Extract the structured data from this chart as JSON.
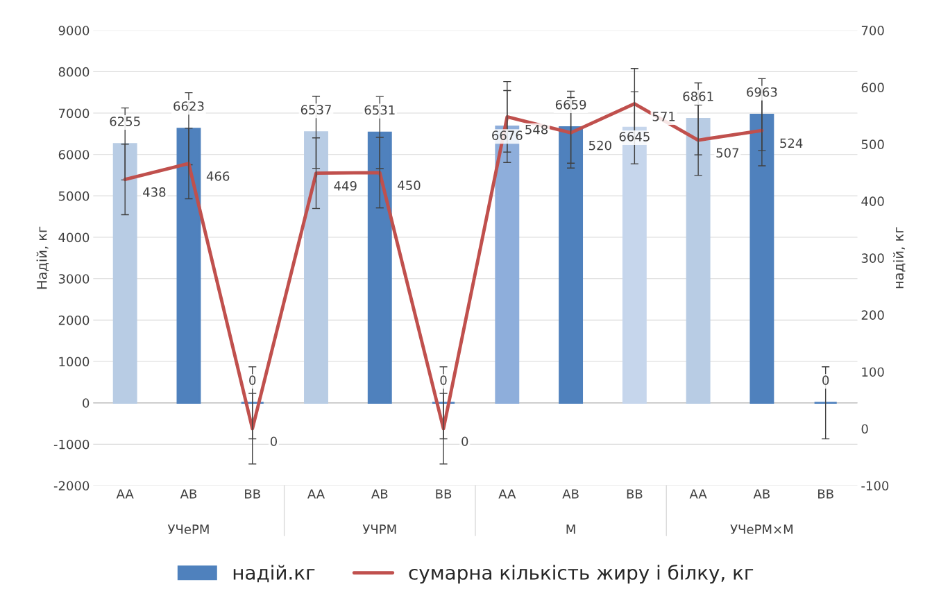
{
  "chart_data": {
    "type": "bar",
    "categories": [
      "AA",
      "AB",
      "BB",
      "AA",
      "AB",
      "BB",
      "AA",
      "AB",
      "BB",
      "AA",
      "AB",
      "BB"
    ],
    "annotations": [
      "УЧеРМ",
      "УЧРМ",
      "М",
      "УЧеРМ×М"
    ],
    "ylabel": "Надій, кг",
    "y2label": "надій, кг",
    "ylim": [
      -2000,
      9000
    ],
    "yticks": [
      -2000,
      -1000,
      0,
      1000,
      2000,
      3000,
      4000,
      5000,
      6000,
      7000,
      8000,
      9000
    ],
    "y2lim": [
      -100,
      700
    ],
    "y2ticks": [
      -100,
      0,
      100,
      200,
      300,
      400,
      500,
      600,
      700
    ],
    "grid": "y",
    "legend": "bottom",
    "data_labels": true,
    "series": [
      {
        "name": "надій.кг",
        "color": "#4f81bd",
        "colors": [
          "#b8cce4",
          "#4f81bd",
          "#4f81bd",
          "#b8cce4",
          "#4f81bd",
          "#4f81bd",
          "#8eaedb",
          "#4f81bd",
          "#c6d6ec",
          "#b8cce4",
          "#4f81bd",
          "#4f81bd"
        ],
        "values": [
          6255,
          6623,
          0,
          6537,
          6531,
          0,
          6676,
          6659,
          6645,
          6861,
          6963,
          0
        ],
        "errors": [
          870,
          870,
          870,
          870,
          870,
          870,
          870,
          870,
          870,
          870,
          870,
          870
        ]
      },
      {
        "name": "сумарна кількість жиру і білку, кг",
        "type": "line",
        "axis": "y2",
        "color": "#c0504d",
        "values": [
          438,
          466,
          0,
          449,
          450,
          0,
          548,
          520,
          571,
          507,
          524,
          null
        ],
        "errors": [
          62,
          62,
          62,
          62,
          62,
          62,
          62,
          62,
          62,
          62,
          62,
          null
        ]
      }
    ]
  }
}
